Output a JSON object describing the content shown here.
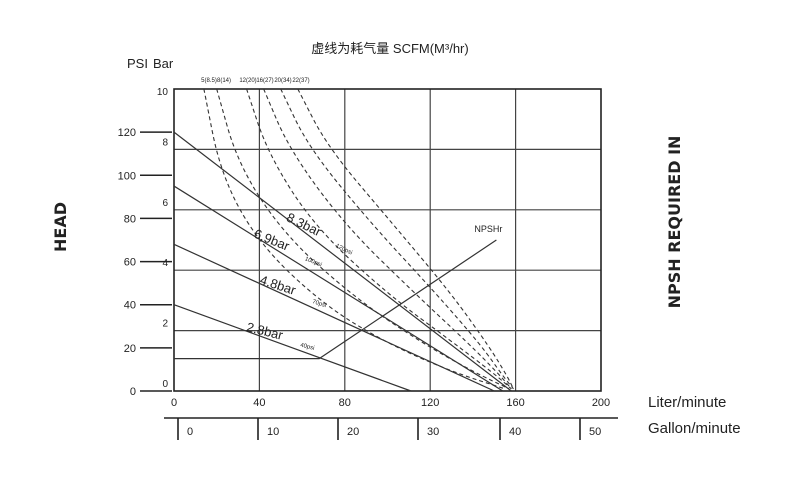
{
  "chart_data": {
    "type": "line",
    "title": "虚线为耗气量 SCFM(M³/hr)",
    "units": {
      "left_psi": "PSI",
      "left_bar": "Bar",
      "head": "HEAD",
      "npsh": "NPSH REQUIRED IN",
      "x_primary": "Liter/minute",
      "x_secondary": "Gallon/minute"
    },
    "x_axis": {
      "min": 0,
      "max": 200,
      "ticks": [
        0,
        40,
        80,
        120,
        160,
        200
      ]
    },
    "psi_axis": {
      "min": 0,
      "max": 140,
      "ticks": [
        0,
        20,
        40,
        60,
        80,
        100,
        120
      ]
    },
    "bar_axis": {
      "min": 0,
      "max": 10,
      "ticks": [
        0,
        2,
        4,
        6,
        8,
        10
      ]
    },
    "gallon_axis": {
      "ticks": [
        "0",
        "10",
        "20",
        "30",
        "40",
        "50"
      ]
    },
    "grid": true,
    "air_consumption_labels": [
      "5(8.5)",
      "8(14)",
      "12(20)",
      "16(27)",
      "20(34)",
      "22(37)"
    ],
    "series": [
      {
        "name": "8.3bar",
        "sub": "120psi",
        "style": "solid",
        "x": [
          0,
          158
        ],
        "y": [
          120,
          0
        ]
      },
      {
        "name": "6.9bar",
        "sub": "100psi",
        "style": "solid",
        "x": [
          0,
          154
        ],
        "y": [
          95,
          0
        ]
      },
      {
        "name": "4.8bar",
        "sub": "70psi",
        "style": "solid",
        "x": [
          0,
          150
        ],
        "y": [
          68,
          0
        ]
      },
      {
        "name": "2.8bar",
        "sub": "40psi",
        "style": "solid",
        "x": [
          0,
          111
        ],
        "y": [
          40,
          0
        ]
      },
      {
        "name": "NPSHr",
        "style": "solid",
        "x": [
          0,
          68,
          151
        ],
        "y": [
          15,
          15,
          70
        ]
      }
    ],
    "air_curves": [
      {
        "label": "5(8.5)",
        "x": [
          14,
          22,
          40,
          70,
          100,
          130,
          155
        ],
        "y": [
          140,
          100,
          68,
          40,
          22,
          9,
          1
        ]
      },
      {
        "label": "8(14)",
        "x": [
          20,
          30,
          52,
          85,
          115,
          140,
          157
        ],
        "y": [
          140,
          105,
          72,
          43,
          23,
          9,
          1
        ]
      },
      {
        "label": "12(20)",
        "x": [
          34,
          44,
          66,
          100,
          130,
          150,
          158
        ],
        "y": [
          140,
          110,
          76,
          45,
          23,
          8,
          1
        ]
      },
      {
        "label": "16(27)",
        "x": [
          42,
          54,
          80,
          112,
          138,
          152,
          158
        ],
        "y": [
          140,
          112,
          77,
          46,
          22,
          8,
          1
        ]
      },
      {
        "label": "20(34)",
        "x": [
          50,
          63,
          92,
          122,
          144,
          154,
          159
        ],
        "y": [
          140,
          113,
          78,
          46,
          21,
          7,
          1
        ]
      },
      {
        "label": "22(37)",
        "x": [
          58,
          72,
          102,
          130,
          148,
          156,
          159
        ],
        "y": [
          140,
          113,
          78,
          45,
          20,
          7,
          1
        ]
      }
    ]
  }
}
